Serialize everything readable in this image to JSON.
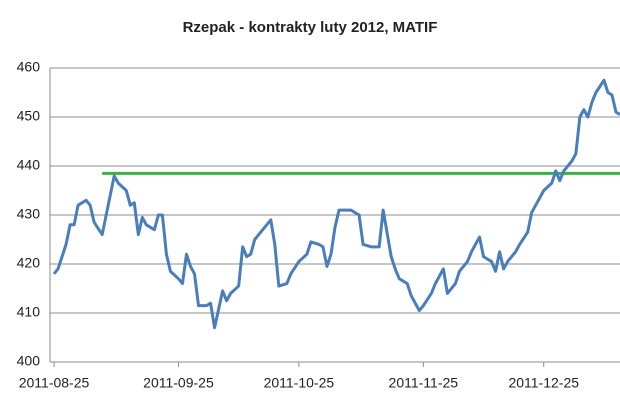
{
  "chart_data": {
    "type": "line",
    "title": "Rzepak - kontrakty luty 2012, MATIF",
    "x": [
      "2011-08-25",
      "2011-08-26",
      "2011-08-28",
      "2011-08-29",
      "2011-08-30",
      "2011-08-31",
      "2011-09-02",
      "2011-09-03",
      "2011-09-04",
      "2011-09-06",
      "2011-09-07",
      "2011-09-09",
      "2011-09-10",
      "2011-09-12",
      "2011-09-13",
      "2011-09-14",
      "2011-09-15",
      "2011-09-16",
      "2011-09-17",
      "2011-09-19",
      "2011-09-20",
      "2011-09-21",
      "2011-09-22",
      "2011-09-23",
      "2011-09-25",
      "2011-09-26",
      "2011-09-27",
      "2011-09-28",
      "2011-09-29",
      "2011-09-30",
      "2011-10-02",
      "2011-10-03",
      "2011-10-04",
      "2011-10-06",
      "2011-10-07",
      "2011-10-08",
      "2011-10-10",
      "2011-10-11",
      "2011-10-12",
      "2011-10-13",
      "2011-10-14",
      "2011-10-16",
      "2011-10-18",
      "2011-10-19",
      "2011-10-20",
      "2011-10-22",
      "2011-10-23",
      "2011-10-25",
      "2011-10-27",
      "2011-10-28",
      "2011-10-30",
      "2011-10-31",
      "2011-11-01",
      "2011-11-02",
      "2011-11-03",
      "2011-11-04",
      "2011-11-06",
      "2011-11-07",
      "2011-11-09",
      "2011-11-10",
      "2011-11-12",
      "2011-11-14",
      "2011-11-15",
      "2011-11-17",
      "2011-11-18",
      "2011-11-19",
      "2011-11-21",
      "2011-11-22",
      "2011-11-24",
      "2011-11-25",
      "2011-11-27",
      "2011-11-28",
      "2011-11-30",
      "2011-12-01",
      "2011-12-03",
      "2011-12-04",
      "2011-12-06",
      "2011-12-07",
      "2011-12-09",
      "2011-12-10",
      "2011-12-12",
      "2011-12-13",
      "2011-12-14",
      "2011-12-15",
      "2011-12-16",
      "2011-12-18",
      "2011-12-19",
      "2011-12-21",
      "2011-12-22",
      "2011-12-24",
      "2011-12-25",
      "2011-12-27",
      "2011-12-28",
      "2011-12-29",
      "2011-12-30",
      "2012-01-01",
      "2012-01-02",
      "2012-01-03",
      "2012-01-04",
      "2012-01-05",
      "2012-01-06",
      "2012-01-07",
      "2012-01-09",
      "2012-01-10",
      "2012-01-11",
      "2012-01-12",
      "2012-01-13"
    ],
    "series": [
      {
        "name": "Rzepak",
        "color": "#4a7ebb",
        "values": [
          418,
          419,
          424,
          428,
          428,
          432,
          433,
          432,
          428.5,
          426,
          430,
          438,
          436.5,
          435,
          432,
          432.5,
          426,
          429.5,
          428,
          427,
          430,
          430,
          422,
          418.5,
          417,
          416,
          422,
          419.5,
          418,
          411.5,
          411.5,
          412,
          407,
          414.5,
          412.5,
          414,
          415.5,
          423.5,
          421.5,
          422,
          425,
          427,
          429,
          424,
          415.5,
          416,
          418,
          420.5,
          422,
          424.5,
          424,
          423.5,
          419.5,
          422,
          427.5,
          431,
          431,
          431,
          430,
          424,
          423.5,
          423.5,
          431,
          421.5,
          419,
          417,
          416,
          413.5,
          410.5,
          411.5,
          414,
          416,
          419,
          414,
          416,
          418.5,
          420.5,
          422.5,
          425.5,
          421.5,
          420.5,
          418.5,
          422.5,
          419,
          420.5,
          422.5,
          424,
          426.5,
          430.5,
          433.5,
          435,
          436.5,
          439,
          437,
          439,
          441,
          442.5,
          450,
          451.5,
          450,
          453,
          455,
          457.5,
          455,
          454.5,
          451,
          450.5
        ]
      }
    ],
    "reference_line": {
      "value": 438.5,
      "from": "2011-09-06",
      "color": "#3cb043"
    },
    "xlim": [
      "2011-08-24",
      "2012-01-13"
    ],
    "xticks": [
      "2011-08-25",
      "2011-09-25",
      "2011-10-25",
      "2011-11-25",
      "2011-12-25"
    ],
    "ylim": [
      400,
      460
    ],
    "yticks": [
      400,
      410,
      420,
      430,
      440,
      450,
      460
    ],
    "grid": true
  }
}
